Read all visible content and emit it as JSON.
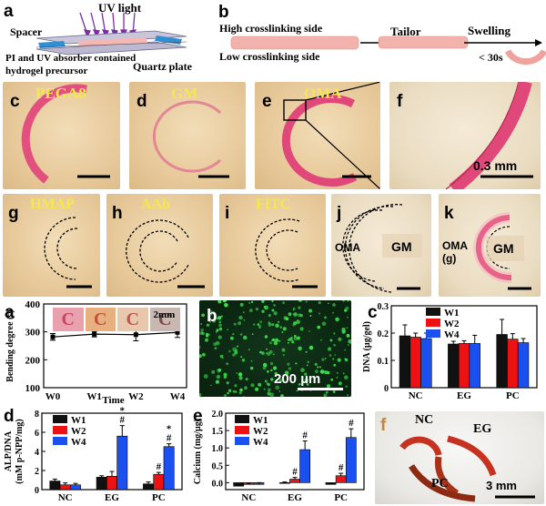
{
  "panel_labels": {
    "a": "a",
    "b": "b",
    "c": "c",
    "d": "d",
    "e": "e",
    "f": "f",
    "g": "g",
    "h": "h",
    "i": "i",
    "j": "j",
    "k": "k",
    "a2": "a",
    "b2": "b",
    "c2": "c",
    "d2": "d",
    "e2": "e",
    "f2": "f"
  },
  "schematic_a": {
    "uv": "UV light",
    "spacer": "Spacer",
    "precursor_line1": "PI and UV absorber contained",
    "precursor_line2": "hydrogel precursor",
    "quartz": "Quartz plate"
  },
  "schematic_b": {
    "high": "High crosslinking side",
    "low": "Low crosslinking side",
    "tailor": "Tailor",
    "swelling": "Swelling",
    "time": "< 30s"
  },
  "micro_titles": {
    "c": "PEGA8",
    "d": "GM",
    "e": "OMA",
    "g": "HMAP",
    "h": "AAb",
    "i": "FITC"
  },
  "scalebar_f": "0.3 mm",
  "j_labels": {
    "oma": "OMA",
    "gm": "GM"
  },
  "k_labels": {
    "oma": "OMA",
    "g": "(g)",
    "gm": "GM"
  },
  "inset_scale": "2mm",
  "scale_b2": "200 µm",
  "scale_f2": "3 mm",
  "photo_f2": {
    "nc": "NC",
    "eg": "EG",
    "pc": "PC"
  },
  "colors": {
    "w1": "#111111",
    "w2": "#ee1111",
    "w4": "#1a4ff0",
    "hydrogel": "#e04a7a"
  },
  "chart_data": [
    {
      "id": "bending",
      "type": "line",
      "xlabel": "Time",
      "ylabel": "Bending degree (°)",
      "categories": [
        "W0",
        "W1",
        "W2",
        "W4"
      ],
      "values": [
        282,
        292,
        290,
        298
      ],
      "errors": [
        12,
        10,
        22,
        18
      ],
      "ylim": [
        100,
        400
      ],
      "yticks": [
        100,
        200,
        300,
        400
      ]
    },
    {
      "id": "dna",
      "type": "bar",
      "ylabel": "DNA (µg/gel)",
      "categories": [
        "NC",
        "EG",
        "PC"
      ],
      "series": [
        {
          "name": "W1",
          "values": [
            0.19,
            0.16,
            0.195
          ],
          "errors": [
            0.04,
            0.01,
            0.055
          ]
        },
        {
          "name": "W2",
          "values": [
            0.185,
            0.162,
            0.178
          ],
          "errors": [
            0.015,
            0.01,
            0.02
          ]
        },
        {
          "name": "W4",
          "values": [
            0.18,
            0.162,
            0.165
          ],
          "errors": [
            0.02,
            0.03,
            0.015
          ]
        }
      ],
      "ylim": [
        0,
        0.3
      ],
      "yticks": [
        0,
        0.1,
        0.2,
        0.3
      ],
      "yticklabels": [
        "0",
        "0.1",
        "0.2",
        "0.3"
      ]
    },
    {
      "id": "alp",
      "type": "bar",
      "ylabel": "ALP/DNA",
      "ylabel2": "(mM p-NPP/mg)",
      "categories": [
        "NC",
        "EG",
        "PC"
      ],
      "series": [
        {
          "name": "W1",
          "values": [
            0.9,
            1.3,
            0.6
          ],
          "errors": [
            0.2,
            0.15,
            0.2
          ]
        },
        {
          "name": "W2",
          "values": [
            0.5,
            1.4,
            1.6
          ],
          "errors": [
            0.2,
            0.5,
            0.2
          ]
        },
        {
          "name": "W4",
          "values": [
            0.5,
            5.6,
            4.5
          ],
          "errors": [
            0.15,
            1.1,
            0.3
          ]
        }
      ],
      "ylim": [
        0,
        8
      ],
      "yticks": [
        0,
        2,
        4,
        6,
        8
      ],
      "yticklabels": [
        "0",
        "2",
        "4",
        "6",
        "8"
      ],
      "marks": [
        {
          "cat": 1,
          "s": 2,
          "text": "#"
        },
        {
          "cat": 1,
          "s": 2,
          "text": "*"
        },
        {
          "cat": 2,
          "s": 1,
          "text": "#"
        },
        {
          "cat": 2,
          "s": 2,
          "text": "#"
        },
        {
          "cat": 2,
          "s": 2,
          "text": "*"
        }
      ]
    },
    {
      "id": "calcium",
      "type": "bar",
      "ylabel": "Calcium (mg/µg)",
      "categories": [
        "NC",
        "EG",
        "PC"
      ],
      "series": [
        {
          "name": "W1",
          "values": [
            -0.1,
            0.0,
            -0.05
          ],
          "errors": [
            0.03,
            0.02,
            0.03
          ]
        },
        {
          "name": "W2",
          "values": [
            -0.05,
            0.1,
            0.2
          ],
          "errors": [
            0.03,
            0.05,
            0.07
          ]
        },
        {
          "name": "W4",
          "values": [
            -0.05,
            0.95,
            1.3
          ],
          "errors": [
            0.05,
            0.25,
            0.25
          ]
        }
      ],
      "ylim": [
        -0.2,
        2.0
      ],
      "yticks": [
        0.0,
        0.5,
        1.0,
        1.5,
        2.0
      ],
      "yticklabels": [
        "0.0",
        "0.5",
        "1.0",
        "1.5",
        "2.0"
      ],
      "marks": [
        {
          "cat": 1,
          "s": 1,
          "text": "#"
        },
        {
          "cat": 1,
          "s": 2,
          "text": "#"
        },
        {
          "cat": 2,
          "s": 1,
          "text": "#"
        },
        {
          "cat": 2,
          "s": 2,
          "text": "#"
        }
      ]
    }
  ]
}
